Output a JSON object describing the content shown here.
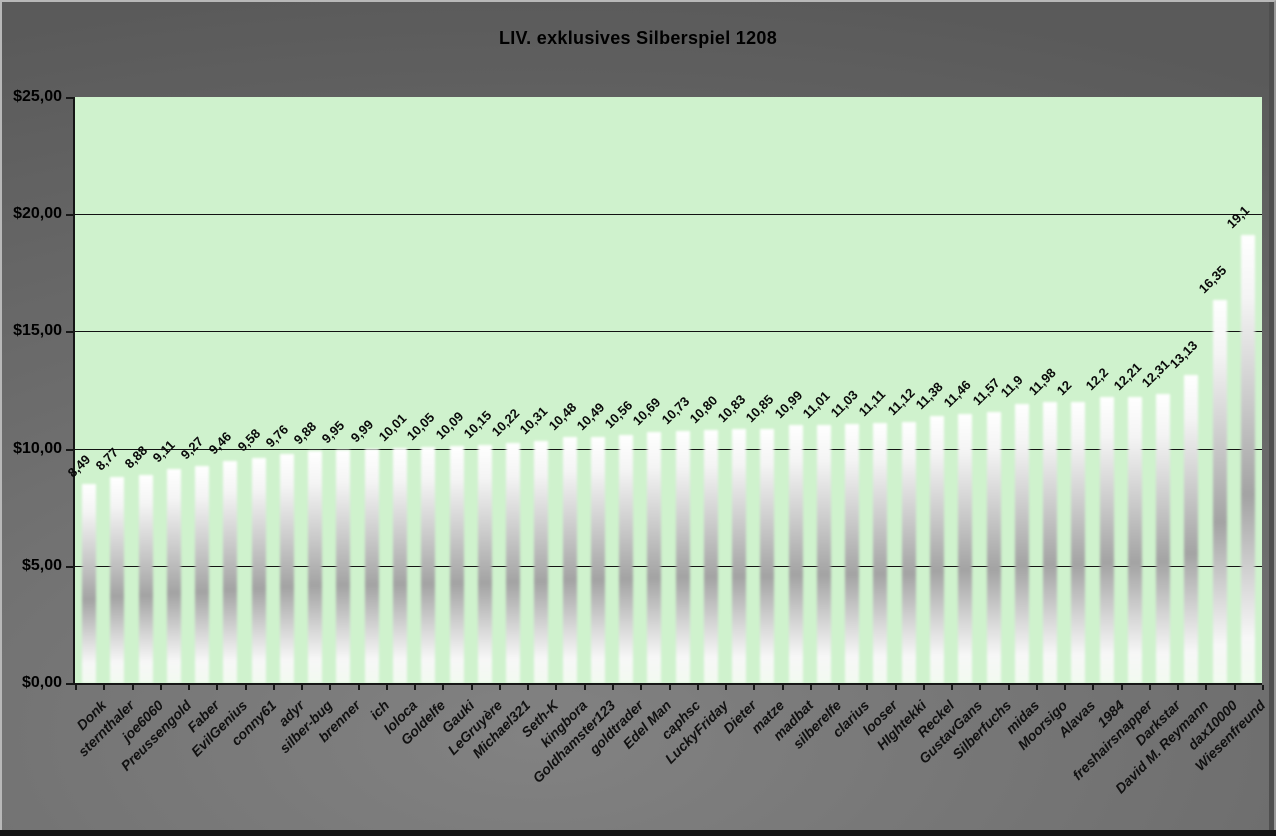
{
  "chart_data": {
    "type": "bar",
    "title": "LIV. exklusives Silberspiel 1208",
    "categories": [
      "Donk",
      "sternthaler",
      "joe6060",
      "Preussengold",
      "Faber",
      "EvilGenius",
      "conny61",
      "adyr",
      "silber-bug",
      "brenner",
      "ich",
      "loloca",
      "Goldelfe",
      "Gauki",
      "LeGruyère",
      "Michael321",
      "Seth-K",
      "kingbora",
      "Goldhamster123",
      "goldtrader",
      "Edel Man",
      "caphsc",
      "LuckyFriday",
      "Dieter",
      "matze",
      "madbat",
      "silberelfe",
      "clarius",
      "looser",
      "HIghtekki",
      "Reckel",
      "GustavGans",
      "Silberfuchs",
      "midas",
      "Moorsigo",
      "Alavas",
      "1984",
      "freshairsnapper",
      "Darkstar",
      "David M. Reymann",
      "dax10000",
      "Wiesenfreund"
    ],
    "values": [
      8.49,
      8.77,
      8.88,
      9.11,
      9.27,
      9.46,
      9.58,
      9.76,
      9.88,
      9.95,
      9.99,
      10.01,
      10.05,
      10.09,
      10.15,
      10.22,
      10.31,
      10.48,
      10.49,
      10.56,
      10.69,
      10.73,
      10.8,
      10.83,
      10.85,
      10.99,
      11.01,
      11.03,
      11.11,
      11.12,
      11.38,
      11.46,
      11.57,
      11.9,
      11.98,
      12,
      12.2,
      12.21,
      12.31,
      13.13,
      16.35,
      19.1
    ],
    "value_labels": [
      "8,49",
      "8,77",
      "8,88",
      "9,11",
      "9,27",
      "9,46",
      "9,58",
      "9,76",
      "9,88",
      "9,95",
      "9,99",
      "10,01",
      "10,05",
      "10,09",
      "10,15",
      "10,22",
      "10,31",
      "10,48",
      "10,49",
      "10,56",
      "10,69",
      "10,73",
      "10,80",
      "10,83",
      "10,85",
      "10,99",
      "11,01",
      "11,03",
      "11,11",
      "11,12",
      "11,38",
      "11,46",
      "11,57",
      "11,9",
      "11,98",
      "12",
      "12,2",
      "12,21",
      "12,31",
      "13,13",
      "16,35",
      "19,1"
    ],
    "y_tick_labels": [
      "$25,00",
      "$20,00",
      "$15,00",
      "$10,00",
      "$5,00",
      "$0,00"
    ],
    "y_tick_values": [
      25,
      20,
      15,
      10,
      5,
      0
    ],
    "ylim": [
      0,
      25
    ],
    "xlabel": "",
    "ylabel": "",
    "grid": "horizontal-solid",
    "legend": "none",
    "colors": {
      "plot_bg": "#cff2cd",
      "chart_bg": "#6a6a6a",
      "bar_top": "#ffffff",
      "bar_mid": "#a3a3a3",
      "grid_line": "#131313",
      "text": "#000000"
    }
  }
}
